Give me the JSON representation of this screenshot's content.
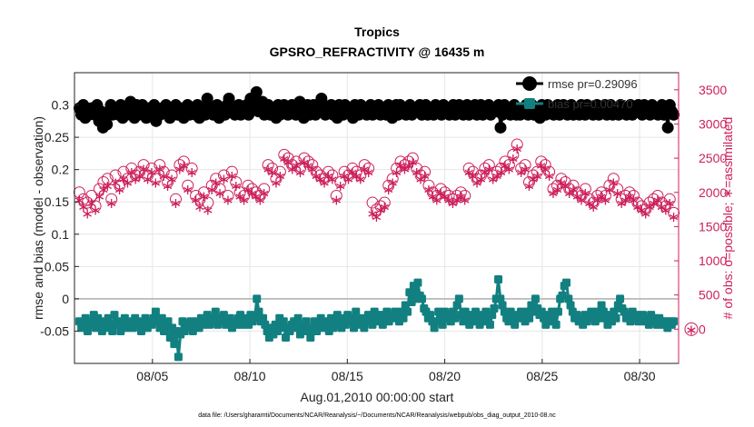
{
  "chart_data": {
    "type": "line",
    "title": "Tropics",
    "subtitle": "GPSRO_REFRACTIVITY @ 16435 m",
    "xlabel": "Aug.01,2010 00:00:00 start",
    "ylabel": "rmse and bias (model - observation)",
    "y2label": "# of obs: o=possible; ∗=assimilated",
    "footnote": "data file: /Users/gharamti/Documents/NCAR/Reanalysis/~/Documents/NCAR/Reanalysis/webpub/obs_diag_output_2010-08.nc",
    "xlim": [
      1,
      32
    ],
    "ylim": [
      -0.1,
      0.35
    ],
    "y2lim": [
      -500,
      3750
    ],
    "x_ticks": [
      5,
      10,
      15,
      20,
      25,
      30
    ],
    "x_tick_labels": [
      "08/05",
      "08/10",
      "08/15",
      "08/20",
      "08/25",
      "08/30"
    ],
    "y_ticks": [
      -0.05,
      0,
      0.05,
      0.1,
      0.15,
      0.2,
      0.25,
      0.3
    ],
    "y_tick_labels": [
      "-0.05",
      "0",
      "0.05",
      "0.1",
      "0.15",
      "0.2",
      "0.25",
      "0.3"
    ],
    "y2_ticks": [
      0,
      500,
      1000,
      1500,
      2000,
      2500,
      3000,
      3500
    ],
    "y2_tick_labels": [
      "0",
      "500",
      "1000",
      "1500",
      "2000",
      "2500",
      "3000",
      "3500"
    ],
    "grid": true,
    "legend": {
      "position": "top-right",
      "entries": [
        {
          "label": "rmse pr=0.29096",
          "color": "#000000"
        },
        {
          "label": "bias pr=0.00470",
          "color": "#128080"
        }
      ]
    },
    "series": [
      {
        "name": "rmse",
        "color": "#000000",
        "axis": "left",
        "values": [
          0.295,
          0.285,
          0.3,
          0.28,
          0.29,
          0.285,
          0.295,
          0.29,
          0.285,
          0.3,
          0.275,
          0.29,
          0.265,
          0.28,
          0.27,
          0.29,
          0.3,
          0.285,
          0.295,
          0.29,
          0.285,
          0.3,
          0.28,
          0.29,
          0.285,
          0.295,
          0.305,
          0.29,
          0.28,
          0.3,
          0.285,
          0.29,
          0.3,
          0.285,
          0.28,
          0.295,
          0.29,
          0.285,
          0.3,
          0.275,
          0.29,
          0.285,
          0.295,
          0.29,
          0.3,
          0.285,
          0.28,
          0.295,
          0.29,
          0.3,
          0.285,
          0.29,
          0.295,
          0.28,
          0.29,
          0.3,
          0.285,
          0.295,
          0.29,
          0.285,
          0.3,
          0.28,
          0.295,
          0.29,
          0.285,
          0.31,
          0.3,
          0.295,
          0.285,
          0.29,
          0.3,
          0.28,
          0.29,
          0.295,
          0.285,
          0.3,
          0.31,
          0.3,
          0.295,
          0.285,
          0.29,
          0.3,
          0.285,
          0.295,
          0.29,
          0.3,
          0.285,
          0.31,
          0.3,
          0.295,
          0.32,
          0.29,
          0.3,
          0.305,
          0.285,
          0.295,
          0.3,
          0.285,
          0.295,
          0.29,
          0.28,
          0.3,
          0.285,
          0.295,
          0.3,
          0.29,
          0.285,
          0.295,
          0.3,
          0.29,
          0.285,
          0.3,
          0.305,
          0.29,
          0.28,
          0.29,
          0.3,
          0.285,
          0.295,
          0.3,
          0.285,
          0.29,
          0.3,
          0.31,
          0.3,
          0.285,
          0.295,
          0.29,
          0.3,
          0.285,
          0.295,
          0.28,
          0.3,
          0.29,
          0.285,
          0.3,
          0.29,
          0.295,
          0.285,
          0.28,
          0.3,
          0.29,
          0.285,
          0.3,
          0.29,
          0.295,
          0.285,
          0.29,
          0.3,
          0.285,
          0.295,
          0.29,
          0.3,
          0.285,
          0.29,
          0.295,
          0.285,
          0.3,
          0.29,
          0.28,
          0.295,
          0.3,
          0.285,
          0.3,
          0.29,
          0.295,
          0.285,
          0.29,
          0.3,
          0.285,
          0.29,
          0.295,
          0.29,
          0.3,
          0.285,
          0.29,
          0.3,
          0.285,
          0.295,
          0.29,
          0.285,
          0.3,
          0.295,
          0.29,
          0.285,
          0.3,
          0.29,
          0.295,
          0.285,
          0.29,
          0.3,
          0.285,
          0.29,
          0.3,
          0.295,
          0.285,
          0.29,
          0.3,
          0.285,
          0.29,
          0.295,
          0.3,
          0.285,
          0.29,
          0.3,
          0.285,
          0.295,
          0.29,
          0.3,
          0.285,
          0.29,
          0.295,
          0.29,
          0.3,
          0.265,
          0.285,
          0.3,
          0.29,
          0.295,
          0.285,
          0.29,
          0.3,
          0.285,
          0.29,
          0.285,
          0.295,
          0.29,
          0.3,
          0.285,
          0.29,
          0.3,
          0.285,
          0.29,
          0.295,
          0.28,
          0.3,
          0.29,
          0.285,
          0.3,
          0.29,
          0.295,
          0.285,
          0.29,
          0.3,
          0.285,
          0.29,
          0.3,
          0.295,
          0.285,
          0.29,
          0.3,
          0.285,
          0.29,
          0.295,
          0.285,
          0.3,
          0.29,
          0.285,
          0.3,
          0.29,
          0.295,
          0.285,
          0.29,
          0.3,
          0.285,
          0.29,
          0.295,
          0.3,
          0.285,
          0.29,
          0.3,
          0.285,
          0.295,
          0.29,
          0.285,
          0.3,
          0.29,
          0.295,
          0.285,
          0.29,
          0.3,
          0.285,
          0.29,
          0.295,
          0.3,
          0.29,
          0.285,
          0.3,
          0.295,
          0.29,
          0.285,
          0.3,
          0.29,
          0.295,
          0.285,
          0.29,
          0.3,
          0.285,
          0.29,
          0.265,
          0.3,
          0.29,
          0.285
        ]
      },
      {
        "name": "bias",
        "color": "#128080",
        "axis": "left",
        "values": [
          -0.035,
          -0.045,
          -0.04,
          -0.03,
          -0.05,
          -0.035,
          -0.04,
          -0.025,
          -0.045,
          -0.03,
          -0.04,
          -0.05,
          -0.035,
          -0.045,
          -0.03,
          -0.04,
          -0.05,
          -0.025,
          -0.04,
          -0.035,
          -0.05,
          -0.04,
          -0.03,
          -0.045,
          -0.035,
          -0.04,
          -0.045,
          -0.03,
          -0.04,
          -0.035,
          -0.05,
          -0.04,
          -0.03,
          -0.045,
          -0.035,
          -0.04,
          -0.03,
          -0.02,
          -0.035,
          -0.045,
          -0.03,
          -0.05,
          -0.04,
          -0.035,
          -0.06,
          -0.045,
          -0.07,
          -0.05,
          -0.09,
          -0.055,
          -0.035,
          -0.05,
          -0.04,
          -0.045,
          -0.035,
          -0.05,
          -0.04,
          -0.035,
          -0.045,
          -0.03,
          -0.04,
          -0.035,
          -0.025,
          -0.04,
          -0.03,
          -0.035,
          -0.02,
          -0.04,
          -0.03,
          -0.035,
          -0.025,
          -0.04,
          -0.035,
          -0.03,
          -0.045,
          -0.035,
          -0.04,
          -0.03,
          -0.025,
          -0.04,
          -0.035,
          -0.03,
          -0.04,
          -0.025,
          -0.035,
          -0.03,
          0.0,
          -0.02,
          -0.035,
          -0.03,
          -0.04,
          -0.05,
          -0.06,
          -0.045,
          -0.055,
          -0.04,
          -0.05,
          -0.03,
          -0.045,
          -0.035,
          -0.06,
          -0.045,
          -0.05,
          -0.04,
          -0.035,
          -0.045,
          -0.03,
          -0.055,
          -0.04,
          -0.05,
          -0.035,
          -0.045,
          -0.06,
          -0.045,
          -0.035,
          -0.05,
          -0.04,
          -0.03,
          -0.045,
          -0.04,
          -0.035,
          -0.05,
          -0.03,
          -0.045,
          -0.04,
          -0.025,
          -0.035,
          -0.045,
          -0.03,
          -0.04,
          -0.025,
          -0.035,
          -0.03,
          -0.045,
          -0.02,
          -0.035,
          -0.04,
          -0.03,
          -0.045,
          -0.035,
          -0.025,
          -0.03,
          -0.04,
          -0.02,
          -0.035,
          -0.03,
          -0.025,
          -0.04,
          -0.03,
          -0.02,
          -0.035,
          -0.025,
          -0.03,
          -0.02,
          -0.025,
          -0.035,
          -0.02,
          -0.03,
          -0.01,
          -0.02,
          0.01,
          -0.005,
          0.02,
          0.0,
          0.025,
          0.005,
          0.0,
          -0.015,
          -0.02,
          -0.03,
          -0.025,
          -0.035,
          -0.045,
          -0.035,
          -0.02,
          -0.03,
          -0.04,
          -0.02,
          -0.03,
          -0.025,
          -0.035,
          -0.02,
          -0.03,
          -0.01,
          0.0,
          -0.025,
          -0.035,
          -0.02,
          -0.03,
          -0.04,
          -0.025,
          -0.035,
          -0.02,
          -0.03,
          -0.04,
          -0.025,
          -0.035,
          -0.02,
          -0.03,
          -0.04,
          -0.025,
          -0.015,
          0.0,
          0.03,
          0.0,
          -0.01,
          -0.02,
          -0.03,
          -0.035,
          -0.02,
          -0.03,
          -0.04,
          -0.025,
          -0.03,
          -0.02,
          -0.025,
          -0.035,
          -0.02,
          -0.03,
          -0.01,
          -0.02,
          0.0,
          -0.015,
          -0.025,
          -0.02,
          -0.03,
          -0.04,
          -0.025,
          -0.035,
          -0.02,
          -0.03,
          -0.04,
          -0.02,
          0.0,
          0.005,
          0.02,
          0.025,
          0.0,
          -0.01,
          -0.02,
          -0.03,
          -0.025,
          -0.035,
          -0.03,
          -0.04,
          -0.025,
          -0.035,
          -0.03,
          -0.02,
          -0.025,
          -0.035,
          -0.02,
          -0.03,
          -0.01,
          -0.02,
          -0.03,
          -0.04,
          -0.025,
          -0.035,
          -0.02,
          -0.03,
          -0.01,
          0.0,
          -0.015,
          -0.02,
          -0.03,
          -0.025,
          -0.035,
          -0.02,
          -0.03,
          -0.025,
          -0.035,
          -0.03,
          -0.025,
          -0.035,
          -0.03,
          -0.04,
          -0.025,
          -0.03,
          -0.035,
          -0.04,
          -0.03,
          -0.035,
          -0.04,
          -0.035,
          -0.045,
          -0.035,
          -0.04,
          -0.035
        ]
      },
      {
        "name": "obs possible",
        "color": "#cc1f5b",
        "axis": "right",
        "marker": "circle",
        "values": [
          2000,
          1900,
          1850,
          1950,
          1800,
          2050,
          2150,
          2200,
          1900,
          2250,
          2100,
          2300,
          2200,
          2350,
          2250,
          2300,
          2400,
          2250,
          2350,
          2200,
          2400,
          2300,
          2150,
          2250,
          1900,
          2400,
          2450,
          2100,
          2350,
          1950,
          1900,
          2000,
          1850,
          2100,
          2200,
          2050,
          2250,
          1950,
          2300,
          2150,
          2000,
          1950,
          2100,
          2050,
          2000,
          1950,
          2050,
          2400,
          2350,
          2200,
          2300,
          2550,
          2500,
          2400,
          2450,
          2350,
          2500,
          2450,
          2400,
          2300,
          2250,
          2200,
          2300,
          2250,
          1950,
          2150,
          2300,
          2250,
          2350,
          2300,
          2250,
          2400,
          2350,
          1850,
          1750,
          1800,
          1850,
          2100,
          2200,
          2350,
          2450,
          2400,
          2450,
          2500,
          2350,
          2250,
          2300,
          2100,
          2000,
          1950,
          2050,
          2000,
          1950,
          1900,
          1950,
          2000,
          1950,
          2350,
          2300,
          2200,
          2250,
          2350,
          2400,
          2250,
          2300,
          2350,
          2450,
          2400,
          2550,
          2700,
          2350,
          2400,
          2150,
          2250,
          2300,
          2450,
          2400,
          2300,
          2050,
          2100,
          2200,
          2150,
          2050,
          2100,
          2000,
          1950,
          2050,
          1900,
          1850,
          1950,
          2000,
          1950,
          2100,
          2200,
          2050,
          1900,
          1950,
          2000,
          1950,
          1850,
          1800,
          1750,
          1850,
          1900,
          1950,
          1850,
          1800,
          1900,
          1700
        ]
      },
      {
        "name": "obs assimilated",
        "color": "#cc1f5b",
        "axis": "right",
        "marker": "star",
        "values": [
          1900,
          1800,
          1700,
          1850,
          1750,
          1950,
          2050,
          2100,
          1850,
          2150,
          2050,
          2200,
          2150,
          2300,
          2200,
          2250,
          2350,
          2200,
          2300,
          2150,
          2350,
          2250,
          2100,
          2200,
          1850,
          2350,
          2400,
          2050,
          2300,
          1900,
          1800,
          1950,
          1750,
          2050,
          2150,
          2000,
          2200,
          1900,
          2250,
          2100,
          1950,
          1900,
          2050,
          2000,
          1950,
          1900,
          2000,
          2350,
          2300,
          2150,
          2250,
          2500,
          2450,
          2350,
          2400,
          2300,
          2450,
          2400,
          2350,
          2250,
          2200,
          2150,
          2250,
          2200,
          1900,
          2100,
          2250,
          2200,
          2300,
          2250,
          2200,
          2350,
          2300,
          1700,
          1650,
          1750,
          1800,
          2050,
          2150,
          2300,
          2400,
          2350,
          2400,
          2450,
          2300,
          2200,
          2250,
          2050,
          1950,
          1900,
          2000,
          1950,
          1900,
          1850,
          1900,
          1950,
          1900,
          2300,
          2250,
          2150,
          2200,
          2300,
          2350,
          2200,
          2250,
          2300,
          2400,
          2350,
          2500,
          2650,
          2300,
          2350,
          2100,
          2200,
          2250,
          2400,
          2350,
          2250,
          2000,
          2050,
          2150,
          2100,
          2000,
          2050,
          1950,
          1900,
          2000,
          1850,
          1800,
          1900,
          1950,
          1900,
          2050,
          2150,
          2000,
          1850,
          1900,
          1950,
          1900,
          1800,
          1750,
          1700,
          1800,
          1850,
          1900,
          1800,
          1750,
          1850,
          1650
        ]
      }
    ]
  }
}
